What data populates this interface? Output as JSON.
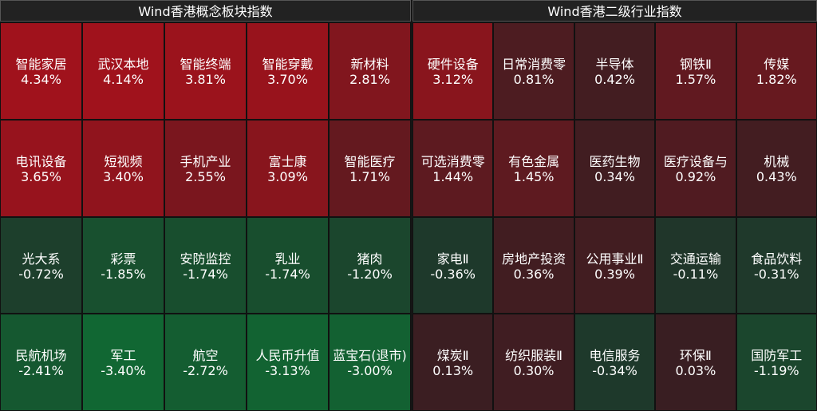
{
  "panels": [
    {
      "title": "Wind香港概念板块指数",
      "cells": [
        {
          "name": "智能家居",
          "change": {
            "value": 4.34,
            "label": "4.34%"
          }
        },
        {
          "name": "武汉本地",
          "change": {
            "value": 4.14,
            "label": "4.14%"
          }
        },
        {
          "name": "智能终端",
          "change": {
            "value": 3.81,
            "label": "3.81%"
          }
        },
        {
          "name": "智能穿戴",
          "change": {
            "value": 3.7,
            "label": "3.70%"
          }
        },
        {
          "name": "新材料",
          "change": {
            "value": 2.81,
            "label": "2.81%"
          }
        },
        {
          "name": "电讯设备",
          "change": {
            "value": 3.65,
            "label": "3.65%"
          }
        },
        {
          "name": "短视频",
          "change": {
            "value": 3.4,
            "label": "3.40%"
          }
        },
        {
          "name": "手机产业",
          "change": {
            "value": 2.55,
            "label": "2.55%"
          }
        },
        {
          "name": "富士康",
          "change": {
            "value": 3.09,
            "label": "3.09%"
          }
        },
        {
          "name": "智能医疗",
          "change": {
            "value": 1.71,
            "label": "1.71%"
          }
        },
        {
          "name": "光大系",
          "change": {
            "value": -0.72,
            "label": "-0.72%"
          }
        },
        {
          "name": "彩票",
          "change": {
            "value": -1.85,
            "label": "-1.85%"
          }
        },
        {
          "name": "安防监控",
          "change": {
            "value": -1.74,
            "label": "-1.74%"
          }
        },
        {
          "name": "乳业",
          "change": {
            "value": -1.74,
            "label": "-1.74%"
          }
        },
        {
          "name": "猪肉",
          "change": {
            "value": -1.2,
            "label": "-1.20%"
          }
        },
        {
          "name": "民航机场",
          "change": {
            "value": -2.41,
            "label": "-2.41%"
          }
        },
        {
          "name": "军工",
          "change": {
            "value": -3.4,
            "label": "-3.40%"
          }
        },
        {
          "name": "航空",
          "change": {
            "value": -2.72,
            "label": "-2.72%"
          }
        },
        {
          "name": "人民币升值",
          "change": {
            "value": -3.13,
            "label": "-3.13%"
          }
        },
        {
          "name": "蓝宝石(退市)",
          "change": {
            "value": -3.0,
            "label": "-3.00%"
          }
        }
      ]
    },
    {
      "title": "Wind香港二级行业指数",
      "cells": [
        {
          "name": "硬件设备",
          "change": {
            "value": 3.12,
            "label": "3.12%"
          }
        },
        {
          "name": "日常消费零",
          "change": {
            "value": 0.81,
            "label": "0.81%"
          }
        },
        {
          "name": "半导体",
          "change": {
            "value": 0.42,
            "label": "0.42%"
          }
        },
        {
          "name": "钢铁Ⅱ",
          "change": {
            "value": 1.57,
            "label": "1.57%"
          }
        },
        {
          "name": "传媒",
          "change": {
            "value": 1.82,
            "label": "1.82%"
          }
        },
        {
          "name": "可选消费零",
          "change": {
            "value": 1.44,
            "label": "1.44%"
          }
        },
        {
          "name": "有色金属",
          "change": {
            "value": 1.45,
            "label": "1.45%"
          }
        },
        {
          "name": "医药生物",
          "change": {
            "value": 0.34,
            "label": "0.34%"
          }
        },
        {
          "name": "医疗设备与",
          "change": {
            "value": 0.92,
            "label": "0.92%"
          }
        },
        {
          "name": "机械",
          "change": {
            "value": 0.43,
            "label": "0.43%"
          }
        },
        {
          "name": "家电Ⅱ",
          "change": {
            "value": -0.36,
            "label": "-0.36%"
          }
        },
        {
          "name": "房地产投资",
          "change": {
            "value": 0.36,
            "label": "0.36%"
          }
        },
        {
          "name": "公用事业Ⅱ",
          "change": {
            "value": 0.39,
            "label": "0.39%"
          }
        },
        {
          "name": "交通运输",
          "change": {
            "value": -0.11,
            "label": "-0.11%"
          }
        },
        {
          "name": "食品饮料",
          "change": {
            "value": -0.31,
            "label": "-0.31%"
          }
        },
        {
          "name": "煤炭Ⅱ",
          "change": {
            "value": 0.13,
            "label": "0.13%"
          }
        },
        {
          "name": "纺织服装Ⅱ",
          "change": {
            "value": 0.3,
            "label": "0.30%"
          }
        },
        {
          "name": "电信服务",
          "change": {
            "value": -0.34,
            "label": "-0.34%"
          }
        },
        {
          "name": "环保Ⅱ",
          "change": {
            "value": 0.03,
            "label": "0.03%"
          }
        },
        {
          "name": "国防军工",
          "change": {
            "value": -1.19,
            "label": "-1.19%"
          }
        }
      ]
    }
  ]
}
